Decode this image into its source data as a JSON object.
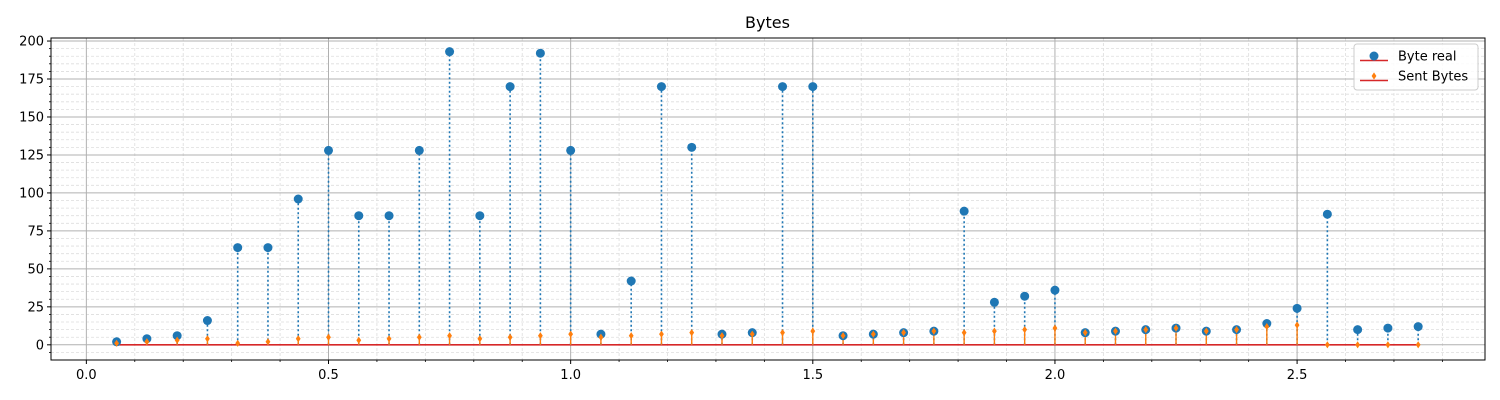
{
  "chart_data": {
    "type": "stem",
    "title": "Bytes",
    "xlabel": "",
    "ylabel": "",
    "xlim": [
      -0.073,
      2.888
    ],
    "ylim": [
      -10,
      202
    ],
    "x_ticks": [
      0.0,
      0.5,
      1.0,
      1.5,
      2.0,
      2.5
    ],
    "x_tick_labels": [
      "0.0",
      "0.5",
      "1.0",
      "1.5",
      "2.0",
      "2.5"
    ],
    "y_ticks": [
      0,
      25,
      50,
      75,
      100,
      125,
      150,
      175,
      200
    ],
    "y_tick_labels": [
      "0",
      "25",
      "50",
      "75",
      "100",
      "125",
      "150",
      "175",
      "200"
    ],
    "grid": true,
    "minor_grid": true,
    "legend_position": "top-right",
    "baseline": 0,
    "baseline_color": "#d62728",
    "x": [
      0.0625,
      0.125,
      0.1875,
      0.25,
      0.3125,
      0.375,
      0.4375,
      0.5,
      0.5625,
      0.625,
      0.6875,
      0.75,
      0.8125,
      0.875,
      0.9375,
      1.0,
      1.0625,
      1.125,
      1.1875,
      1.25,
      1.3125,
      1.375,
      1.4375,
      1.5,
      1.5625,
      1.625,
      1.6875,
      1.75,
      1.8125,
      1.875,
      1.9375,
      2.0,
      2.0625,
      2.125,
      2.1875,
      2.25,
      2.3125,
      2.375,
      2.4375,
      2.5,
      2.5625,
      2.625,
      2.6875,
      2.75
    ],
    "series": [
      {
        "name": "Byte real",
        "color": "#1f77b4",
        "marker": "circle",
        "line_style": "dotted",
        "values": [
          2,
          4,
          6,
          16,
          64,
          64,
          96,
          128,
          85,
          85,
          128,
          193,
          85,
          170,
          192,
          128,
          7,
          42,
          170,
          130,
          7,
          8,
          170,
          170,
          6,
          7,
          8,
          9,
          88,
          28,
          32,
          36,
          8,
          9,
          10,
          11,
          9,
          10,
          14,
          24,
          86,
          10,
          11,
          12
        ]
      },
      {
        "name": "Sent Bytes",
        "color": "#ff7f0e",
        "marker": "diamond",
        "line_style": "solid",
        "values": [
          1,
          2,
          3,
          4,
          1,
          2,
          4,
          5,
          3,
          4,
          5,
          6,
          4,
          5,
          6,
          7,
          5,
          6,
          7,
          8,
          6,
          7,
          8,
          9,
          6,
          7,
          8,
          9,
          8,
          9,
          10,
          11,
          8,
          9,
          10,
          11,
          9,
          10,
          12,
          13,
          0,
          0,
          0,
          0
        ]
      }
    ]
  }
}
